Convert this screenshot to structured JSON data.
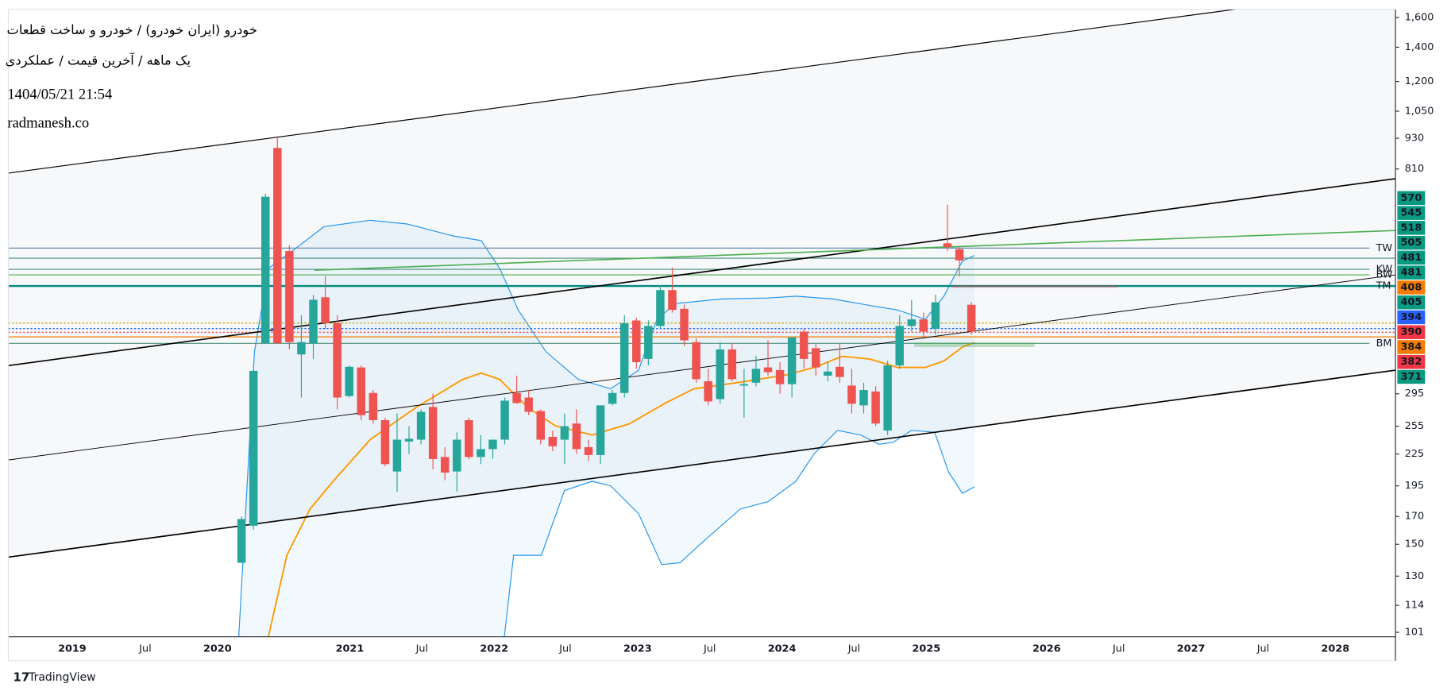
{
  "chart_data": {
    "type": "candlestick",
    "title": "خودرو (ایران خودرو) / خودرو و ساخت قطعات",
    "subtitle": "یک ماهه / آخرین قیمت / عملکردی",
    "date": "1404/05/21 21:54",
    "watermark": "radmanesh.co",
    "brand": "TradingView",
    "log_scale": true,
    "up_color": "#26a69a",
    "down_color": "#ef5350",
    "ylim": [
      99,
      1660
    ],
    "yticks": [
      101,
      114,
      130,
      150,
      170,
      195,
      225,
      255,
      295,
      810,
      930,
      {
        "value": 1050,
        "label": "1,050"
      },
      {
        "value": 1200,
        "label": "1,200"
      },
      {
        "value": 1400,
        "label": "1,400"
      },
      {
        "value": 1600,
        "label": "1,600"
      }
    ],
    "x_labels": [
      "2019",
      "Jul",
      "2020",
      "2021",
      "Jul",
      "2022",
      "Jul",
      "2023",
      "Jul",
      "2024",
      "Jul",
      "2025",
      "2026",
      "Jul",
      "2027",
      "Jul",
      "2028"
    ],
    "open": [
      138,
      163,
      370,
      890,
      560,
      352,
      370,
      455,
      405,
      292,
      332,
      296,
      262,
      208,
      238,
      240,
      278,
      222,
      208,
      262,
      222,
      230,
      240,
      296,
      290,
      273,
      243,
      240,
      258,
      232,
      224,
      282,
      296,
      410,
      345,
      400,
      470,
      432,
      372,
      312,
      288,
      360,
      306,
      310,
      332,
      328,
      308,
      390,
      362,
      320,
      333,
      306,
      280,
      298,
      250,
      335,
      400,
      412,
      395,
      580,
      565,
      440
    ],
    "high": [
      170,
      330,
      725,
      940,
      575,
      420,
      460,
      500,
      420,
      335,
      335,
      300,
      265,
      270,
      255,
      275,
      295,
      232,
      248,
      265,
      245,
      240,
      290,
      320,
      300,
      275,
      250,
      270,
      275,
      240,
      280,
      300,
      420,
      415,
      410,
      480,
      520,
      440,
      378,
      330,
      372,
      370,
      330,
      350,
      375,
      340,
      380,
      395,
      370,
      340,
      370,
      330,
      310,
      305,
      342,
      420,
      450,
      425,
      460,
      690,
      570,
      445
    ],
    "low": [
      138,
      160,
      370,
      370,
      360,
      290,
      345,
      395,
      275,
      290,
      262,
      258,
      213,
      190,
      225,
      235,
      210,
      200,
      190,
      220,
      215,
      220,
      235,
      282,
      268,
      235,
      228,
      215,
      225,
      218,
      215,
      280,
      290,
      330,
      335,
      395,
      425,
      365,
      310,
      280,
      282,
      312,
      265,
      305,
      320,
      295,
      290,
      330,
      320,
      312,
      310,
      270,
      270,
      255,
      245,
      330,
      390,
      380,
      385,
      560,
      500,
      385
    ],
    "close": [
      168,
      327,
      715,
      370,
      372,
      372,
      450,
      405,
      290,
      333,
      268,
      262,
      215,
      240,
      241,
      272,
      220,
      207,
      240,
      222,
      230,
      240,
      286,
      283,
      272,
      240,
      233,
      255,
      230,
      224,
      280,
      296,
      405,
      340,
      400,
      470,
      430,
      375,
      315,
      285,
      360,
      315,
      308,
      330,
      325,
      308,
      380,
      345,
      332,
      326,
      318,
      282,
      300,
      258,
      335,
      400,
      412,
      390,
      445,
      570,
      537,
      390
    ],
    "level_labels": [
      "TW",
      "KW",
      "BW",
      "TM",
      "BM"
    ],
    "price_labels": [
      570,
      545,
      518,
      505,
      481,
      481,
      408,
      405,
      394,
      390,
      384,
      382,
      371
    ],
    "price_label_colors": [
      "#089981",
      "#089981",
      "#089981",
      "#089981",
      "#089981",
      "#089981",
      "#f57c00",
      "#089981",
      "#2962ff",
      "#f23645",
      "#f57c00",
      "#f23645",
      "#089981"
    ]
  }
}
